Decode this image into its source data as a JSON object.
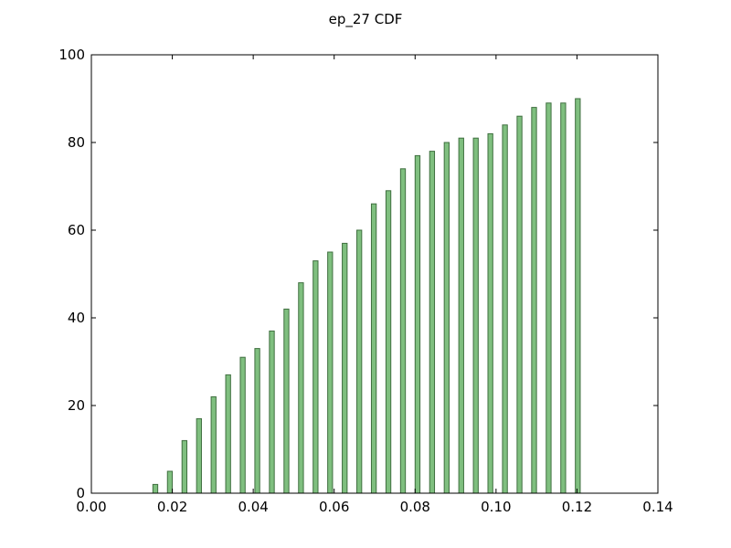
{
  "chart_data": {
    "type": "bar",
    "title": "ep_27 CDF",
    "xlabel": "",
    "ylabel": "",
    "xlim": [
      0.0,
      0.14
    ],
    "ylim": [
      0,
      100
    ],
    "x_ticks": [
      "0.00",
      "0.02",
      "0.04",
      "0.06",
      "0.08",
      "0.10",
      "0.12",
      "0.14"
    ],
    "y_ticks": [
      "0",
      "20",
      "40",
      "60",
      "80",
      "100"
    ],
    "grid": false,
    "bar_color": "#7fbf7f",
    "bar_edge_color": "#3f6f3f",
    "x": [
      0.0158,
      0.0194,
      0.023,
      0.0266,
      0.0302,
      0.0338,
      0.0374,
      0.041,
      0.0446,
      0.0482,
      0.0518,
      0.0554,
      0.059,
      0.0626,
      0.0662,
      0.0698,
      0.0734,
      0.077,
      0.0806,
      0.0842,
      0.0878,
      0.0914,
      0.095,
      0.0986,
      0.1022,
      0.1058,
      0.1094,
      0.113,
      0.1166,
      0.1202
    ],
    "values": [
      2,
      5,
      12,
      17,
      22,
      27,
      31,
      33,
      37,
      42,
      48,
      53,
      55,
      57,
      60,
      66,
      69,
      74,
      77,
      78,
      80,
      81,
      81,
      82,
      84,
      86,
      88,
      89,
      89,
      90
    ],
    "bar_width": 0.0012
  }
}
